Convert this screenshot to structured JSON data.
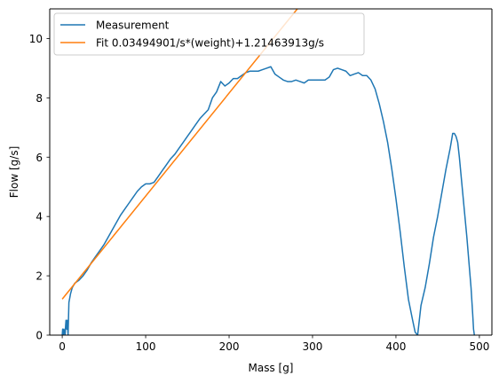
{
  "chart_data": {
    "type": "line",
    "xlabel": "Mass [g]",
    "ylabel": "Flow [g/s]",
    "xlim": [
      -15.0,
      515.0
    ],
    "ylim": [
      0,
      11
    ],
    "xticks": [
      0,
      100,
      200,
      300,
      400,
      500
    ],
    "yticks": [
      0,
      2,
      4,
      6,
      8,
      10
    ],
    "grid": false,
    "legend_position": "top-left",
    "series": [
      {
        "name": "Measurement",
        "color": "#1f77b4",
        "x": [
          0,
          0.5,
          1,
          1.5,
          2,
          3,
          3.5,
          4,
          4.5,
          5,
          5.5,
          6,
          7,
          8,
          10,
          12,
          15,
          20,
          25,
          30,
          35,
          40,
          45,
          50,
          55,
          60,
          65,
          70,
          75,
          80,
          85,
          90,
          95,
          100,
          105,
          110,
          115,
          120,
          125,
          130,
          135,
          140,
          145,
          150,
          155,
          160,
          165,
          170,
          175,
          180,
          185,
          190,
          195,
          200,
          205,
          210,
          215,
          220,
          225,
          230,
          235,
          240,
          245,
          250,
          255,
          260,
          265,
          270,
          275,
          280,
          285,
          290,
          295,
          300,
          305,
          310,
          315,
          320,
          325,
          330,
          335,
          340,
          345,
          350,
          355,
          360,
          365,
          370,
          375,
          380,
          385,
          390,
          395,
          400,
          405,
          410,
          415,
          420,
          423,
          426,
          428,
          430,
          435,
          440,
          445,
          450,
          455,
          460,
          465,
          468,
          470,
          472,
          474,
          476,
          480,
          485,
          490,
          492,
          493,
          494
        ],
        "y": [
          0,
          0.2,
          0.1,
          0,
          0.2,
          0.1,
          0,
          0.3,
          0.5,
          0.4,
          0.2,
          0.5,
          0,
          1.1,
          1.4,
          1.6,
          1.75,
          1.85,
          2.0,
          2.2,
          2.45,
          2.65,
          2.85,
          3.05,
          3.3,
          3.55,
          3.8,
          4.05,
          4.25,
          4.45,
          4.65,
          4.85,
          5.0,
          5.1,
          5.1,
          5.15,
          5.35,
          5.55,
          5.75,
          5.95,
          6.1,
          6.3,
          6.5,
          6.7,
          6.9,
          7.1,
          7.3,
          7.45,
          7.6,
          8.0,
          8.2,
          8.55,
          8.4,
          8.5,
          8.65,
          8.65,
          8.75,
          8.85,
          8.9,
          8.9,
          8.9,
          8.95,
          9.0,
          9.05,
          8.8,
          8.7,
          8.6,
          8.55,
          8.55,
          8.6,
          8.55,
          8.5,
          8.6,
          8.6,
          8.6,
          8.6,
          8.6,
          8.7,
          8.95,
          9.0,
          8.95,
          8.9,
          8.75,
          8.8,
          8.85,
          8.75,
          8.75,
          8.6,
          8.3,
          7.8,
          7.2,
          6.5,
          5.6,
          4.6,
          3.5,
          2.3,
          1.2,
          0.5,
          0.1,
          0,
          0.5,
          1.0,
          1.6,
          2.4,
          3.3,
          4.0,
          4.8,
          5.6,
          6.3,
          6.8,
          6.8,
          6.7,
          6.5,
          6.0,
          4.8,
          3.3,
          1.6,
          0.7,
          0.2,
          0
        ],
        "line_width": 1.5
      },
      {
        "name": "Fit 0.03494901/s*(weight)+1.21463913g/s",
        "color": "#ff7f0e",
        "x": [
          0,
          281.8
        ],
        "y": [
          1.21463913,
          11.0
        ],
        "line_width": 1.5
      }
    ]
  }
}
